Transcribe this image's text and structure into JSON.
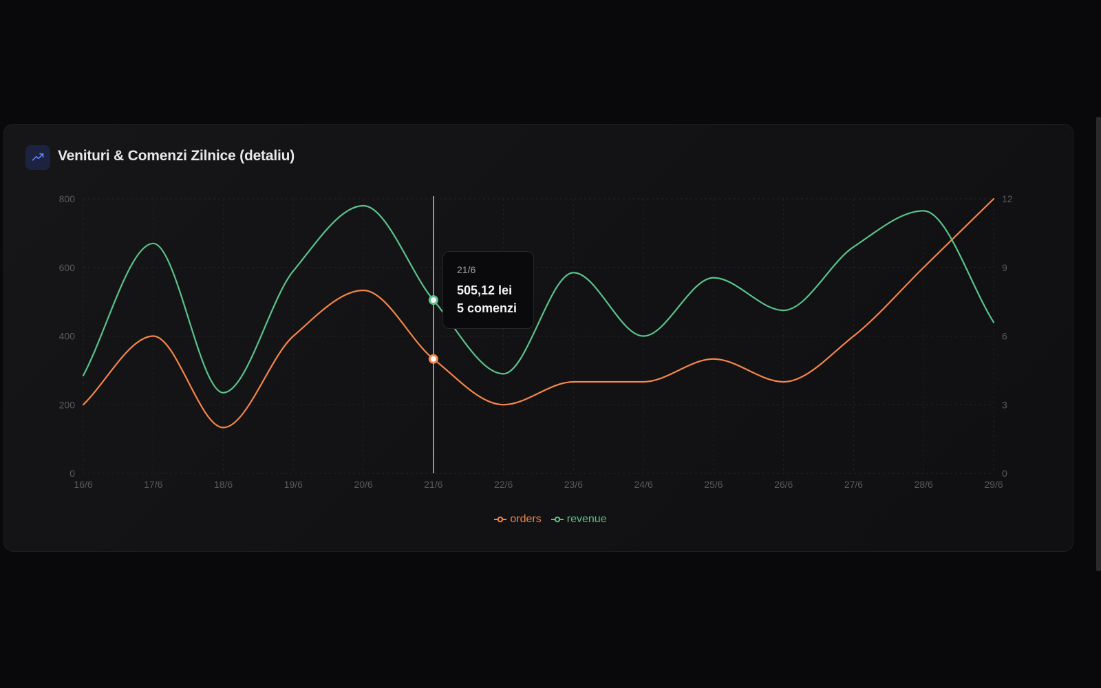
{
  "card": {
    "title": "Venituri & Comenzi Zilnice (detaliu)",
    "icon": "trending-up-icon"
  },
  "tooltip": {
    "date": "21/6",
    "revenue": "505,12 lei",
    "orders": "5 comenzi"
  },
  "colors": {
    "orders": "#f4864a",
    "revenue": "#5bc38d",
    "background": "#09090b",
    "card": "#131315"
  },
  "chart_data": {
    "type": "line",
    "x": [
      "16/6",
      "17/6",
      "18/6",
      "19/6",
      "20/6",
      "21/6",
      "22/6",
      "23/6",
      "24/6",
      "25/6",
      "26/6",
      "27/6",
      "28/6",
      "29/6"
    ],
    "series": [
      {
        "name": "orders",
        "axis": "right",
        "values": [
          3,
          6,
          2,
          6,
          8,
          5,
          3,
          4,
          4,
          5,
          4,
          6,
          9,
          12
        ]
      },
      {
        "name": "revenue",
        "axis": "left",
        "values": [
          285,
          670,
          235,
          590,
          780,
          505,
          290,
          585,
          400,
          570,
          475,
          660,
          765,
          440
        ]
      }
    ],
    "y_left": {
      "range": [
        0,
        800
      ],
      "ticks": [
        0,
        200,
        400,
        600,
        800
      ]
    },
    "y_right": {
      "range": [
        0,
        12
      ],
      "ticks": [
        0,
        3,
        6,
        9,
        12
      ]
    },
    "active_index": 5,
    "legend": [
      "orders",
      "revenue"
    ],
    "legend_position": "bottom-center",
    "grid": true,
    "curve": "smooth"
  }
}
